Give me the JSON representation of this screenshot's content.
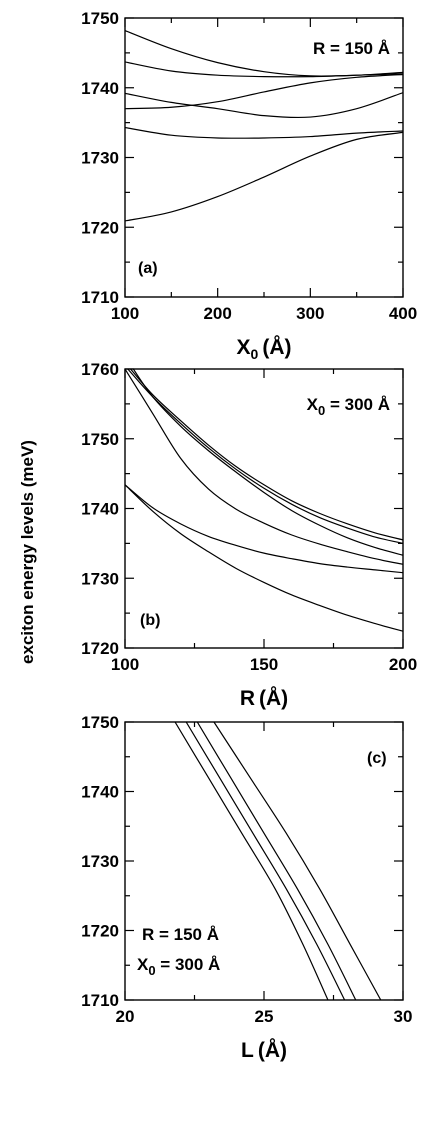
{
  "figure": {
    "shared_ylabel": "exciton energy levels (meV)"
  },
  "chart_data": [
    {
      "type": "line",
      "panel_label": "(a)",
      "xlabel": "X",
      "xlabel_sub": "0",
      "xlabel_unit": "(Å)",
      "annotation": {
        "line1": "R = 150 Å"
      },
      "xlim": [
        100,
        400
      ],
      "ylim": [
        1710,
        1750
      ],
      "xticks": [
        100,
        200,
        300,
        400
      ],
      "yticks": [
        1710,
        1720,
        1730,
        1740,
        1750
      ],
      "series": [
        {
          "x": [
            100,
            150,
            200,
            250,
            300,
            350,
            400
          ],
          "y": [
            1748.2,
            1745.6,
            1743.6,
            1742.3,
            1741.7,
            1741.8,
            1742.2
          ]
        },
        {
          "x": [
            100,
            150,
            200,
            250,
            300,
            350,
            400
          ],
          "y": [
            1743.7,
            1742.4,
            1741.8,
            1741.6,
            1741.6,
            1741.8,
            1742.0
          ]
        },
        {
          "x": [
            100,
            150,
            200,
            250,
            300,
            350,
            400
          ],
          "y": [
            1739.2,
            1737.9,
            1737.0,
            1736.0,
            1735.8,
            1737.0,
            1739.3
          ]
        },
        {
          "x": [
            100,
            150,
            200,
            250,
            300,
            350,
            400
          ],
          "y": [
            1737.0,
            1737.2,
            1738.0,
            1739.4,
            1740.7,
            1741.5,
            1741.9
          ]
        },
        {
          "x": [
            100,
            150,
            200,
            250,
            300,
            350,
            400
          ],
          "y": [
            1734.3,
            1733.2,
            1732.8,
            1732.8,
            1733.0,
            1733.5,
            1733.8
          ]
        },
        {
          "x": [
            100,
            150,
            200,
            250,
            300,
            350,
            400
          ],
          "y": [
            1720.9,
            1722.2,
            1724.4,
            1727.2,
            1730.2,
            1732.6,
            1733.6
          ]
        }
      ]
    },
    {
      "type": "line",
      "panel_label": "(b)",
      "xlabel": "R",
      "xlabel_sub": "",
      "xlabel_unit": "(Å)",
      "annotation": {
        "line1": "X = 300 Å",
        "line1_sub": "0"
      },
      "xlim": [
        100,
        200
      ],
      "ylim": [
        1720,
        1760
      ],
      "xticks": [
        100,
        150,
        200
      ],
      "yticks": [
        1720,
        1730,
        1740,
        1750,
        1760
      ],
      "series": [
        {
          "x": [
            102,
            110,
            120,
            130,
            140,
            150,
            160,
            170,
            180,
            190,
            200
          ],
          "y": [
            1760,
            1756.3,
            1752.6,
            1749.1,
            1746.0,
            1743.4,
            1741.1,
            1739.3,
            1737.8,
            1736.5,
            1735.5
          ]
        },
        {
          "x": [
            101,
            110,
            120,
            130,
            140,
            150,
            160,
            170,
            180,
            190,
            200
          ],
          "y": [
            1760,
            1756.0,
            1752.2,
            1748.7,
            1745.6,
            1742.9,
            1740.6,
            1738.7,
            1737.2,
            1735.9,
            1735.0
          ]
        },
        {
          "x": [
            103,
            110,
            120,
            130,
            140,
            150,
            160,
            170,
            180,
            190,
            200
          ],
          "y": [
            1760,
            1756.0,
            1751.8,
            1748.3,
            1745.2,
            1742.3,
            1739.7,
            1737.6,
            1735.8,
            1734.4,
            1733.3
          ]
        },
        {
          "x": [
            100,
            110,
            120,
            130,
            140,
            150,
            160,
            170,
            180,
            190,
            200
          ],
          "y": [
            1760,
            1753.6,
            1747.2,
            1742.8,
            1739.9,
            1737.9,
            1736.2,
            1734.9,
            1733.8,
            1732.8,
            1732.0
          ]
        },
        {
          "x": [
            100,
            110,
            120,
            130,
            140,
            150,
            160,
            170,
            180,
            190,
            200
          ],
          "y": [
            1743.4,
            1740.1,
            1737.8,
            1736.0,
            1734.7,
            1733.6,
            1732.8,
            1732.1,
            1731.6,
            1731.2,
            1730.8
          ]
        },
        {
          "x": [
            100,
            110,
            120,
            130,
            140,
            150,
            160,
            170,
            180,
            190,
            200
          ],
          "y": [
            1743.4,
            1739.6,
            1736.4,
            1733.8,
            1731.4,
            1729.4,
            1727.6,
            1726.1,
            1724.7,
            1723.5,
            1722.4
          ]
        }
      ]
    },
    {
      "type": "line",
      "panel_label": "(c)",
      "xlabel": "L",
      "xlabel_sub": "",
      "xlabel_unit": "(Å)",
      "annotation": {
        "line1": "R = 150 Å",
        "line2": "X = 300 Å",
        "line2_sub": "0"
      },
      "xlim": [
        20,
        30
      ],
      "ylim": [
        1710,
        1750
      ],
      "xticks": [
        20,
        25,
        30
      ],
      "yticks": [
        1710,
        1720,
        1730,
        1740,
        1750
      ],
      "series": [
        {
          "x": [
            21.8,
            23.0,
            24.2,
            25.4,
            26.4,
            27.3
          ],
          "y": [
            1750,
            1742,
            1734,
            1726,
            1718,
            1710
          ]
        },
        {
          "x": [
            22.2,
            23.4,
            24.6,
            25.8,
            26.9,
            27.9
          ],
          "y": [
            1750,
            1742,
            1734,
            1726,
            1718,
            1710
          ]
        },
        {
          "x": [
            22.6,
            23.8,
            25.0,
            26.2,
            27.3,
            28.3
          ],
          "y": [
            1750,
            1742,
            1734,
            1726,
            1718,
            1710
          ]
        },
        {
          "x": [
            23.2,
            24.5,
            25.8,
            27.0,
            28.1,
            29.2
          ],
          "y": [
            1750,
            1742,
            1734,
            1726,
            1718,
            1710
          ]
        }
      ]
    }
  ]
}
